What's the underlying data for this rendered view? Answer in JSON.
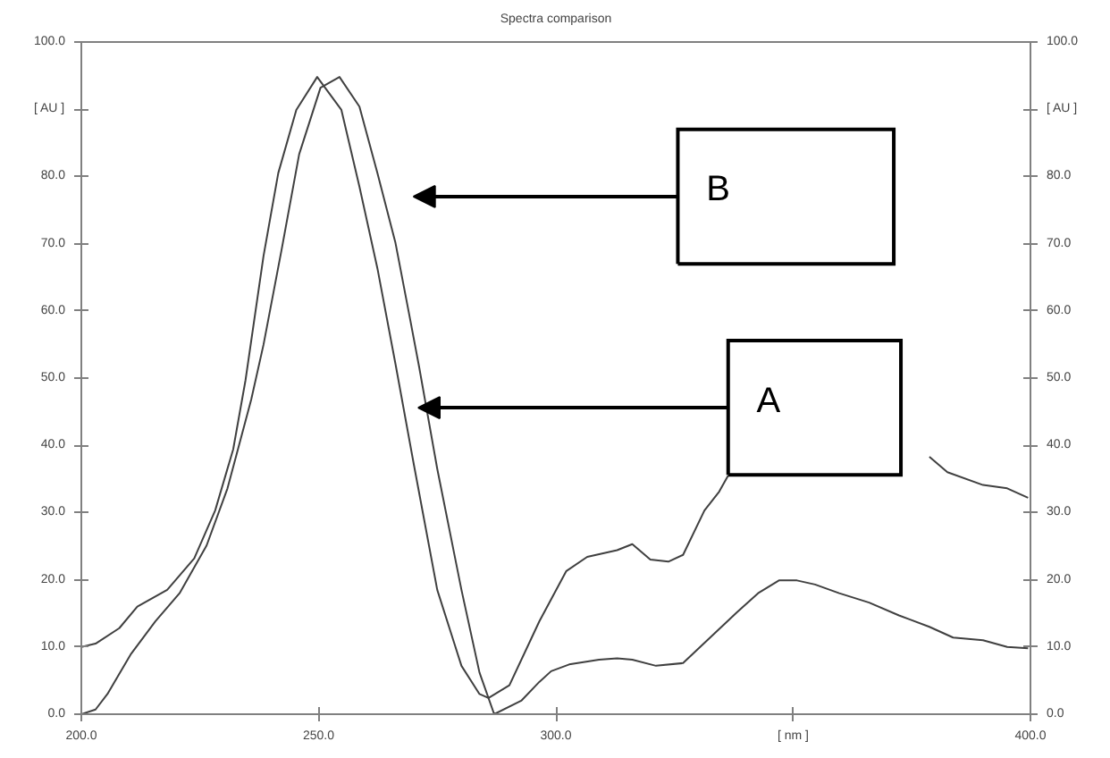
{
  "chart_data": {
    "type": "line",
    "title": "Spectra comparison",
    "xlim": [
      200,
      400
    ],
    "ylim": [
      0,
      100
    ],
    "y2lim": [
      0,
      100
    ],
    "xticks": [
      {
        "value": 200,
        "label": "200.0"
      },
      {
        "value": 250,
        "label": "250.0"
      },
      {
        "value": 300,
        "label": "300.0"
      },
      {
        "value": 350,
        "label": "[ nm ]"
      },
      {
        "value": 400,
        "label": "400.0"
      }
    ],
    "yticks": [
      {
        "value": 0,
        "label": "0.0"
      },
      {
        "value": 10,
        "label": "10.0"
      },
      {
        "value": 20,
        "label": "20.0"
      },
      {
        "value": 30,
        "label": "30.0"
      },
      {
        "value": 40,
        "label": "40.0"
      },
      {
        "value": 50,
        "label": "50.0"
      },
      {
        "value": 60,
        "label": "60.0"
      },
      {
        "value": 70,
        "label": "70.0"
      },
      {
        "value": 80,
        "label": "80.0"
      },
      {
        "value": 90,
        "label": "[ AU ]"
      },
      {
        "value": 100,
        "label": "100.0"
      }
    ],
    "y2ticks": [
      {
        "value": 0,
        "label": "0.0"
      },
      {
        "value": 10,
        "label": "10.0"
      },
      {
        "value": 20,
        "label": "20.0"
      },
      {
        "value": 30,
        "label": "30.0"
      },
      {
        "value": 40,
        "label": "40.0"
      },
      {
        "value": 50,
        "label": "50.0"
      },
      {
        "value": 60,
        "label": "60.0"
      },
      {
        "value": 70,
        "label": "70.0"
      },
      {
        "value": 80,
        "label": "80.0"
      },
      {
        "value": 90,
        "label": "[ AU ]"
      },
      {
        "value": 100,
        "label": "100.0"
      }
    ],
    "tick_labels": "xy",
    "grid": false,
    "marker": "none",
    "line_style": "solid",
    "annotations": [
      "B",
      {
        "text": "A",
        "x": 271,
        "y": 45.6
      }
    ],
    "series": [
      {
        "color": "#404040",
        "x": [
          200,
          203,
          208,
          211.8,
          218.1,
          223.8,
          228.2,
          232,
          234.6,
          238.4,
          241.5,
          245.3,
          249.7,
          254.8,
          258.6,
          262.4,
          266.2,
          270,
          275,
          280.1,
          283.9,
          285.8,
          290.2,
          296.5,
          302.2,
          306.6,
          312.9,
          316.1,
          319.9,
          323.7,
          326.8,
          331.3,
          334.4,
          336.3,
          355,
          378.7,
          382.5,
          390,
          395.1,
          399.5
        ],
        "values": [
          10.0,
          10.5,
          12.8,
          16,
          18.5,
          23.2,
          30.3,
          39.4,
          49.7,
          68.2,
          80.5,
          89.9,
          94.8,
          89.9,
          78.5,
          66.3,
          52.1,
          37.4,
          18.5,
          7.2,
          3.0,
          2.4,
          4.3,
          13.8,
          21.3,
          23.4,
          24.4,
          25.3,
          23.0,
          22.7,
          23.7,
          30.3,
          33.1,
          35.5,
          null,
          38.3,
          36,
          34.1,
          33.6,
          32.2
        ]
      },
      {
        "color": "#404040",
        "x": [
          200,
          203,
          205.5,
          210.5,
          215.6,
          220.7,
          226.4,
          230.8,
          235.8,
          238.4,
          242.2,
          245.9,
          250.4,
          254.4,
          258.6,
          262.4,
          266.2,
          269.3,
          271.2,
          275,
          280.1,
          283.9,
          287,
          292.7,
          296.5,
          299,
          302.8,
          309.1,
          312.9,
          316.1,
          321.1,
          326.8,
          331.9,
          338.2,
          342.6,
          347,
          350.8,
          354.6,
          359.7,
          366,
          372.3,
          378.7,
          383.7,
          390,
          395.1,
          399.5
        ],
        "values": [
          0,
          0.7,
          3,
          9,
          13.8,
          18,
          25.1,
          33.6,
          46.8,
          55,
          69.1,
          83.3,
          93.2,
          94.8,
          90.4,
          80.5,
          70.1,
          58.7,
          51.6,
          36.5,
          18.5,
          6.2,
          0,
          2,
          4.8,
          6.4,
          7.4,
          8.1,
          8.3,
          8.1,
          7.2,
          7.6,
          11,
          15.2,
          18,
          19.9,
          19.9,
          19.3,
          18,
          16.6,
          14.7,
          13,
          11.4,
          11,
          10,
          9.8
        ]
      }
    ]
  }
}
